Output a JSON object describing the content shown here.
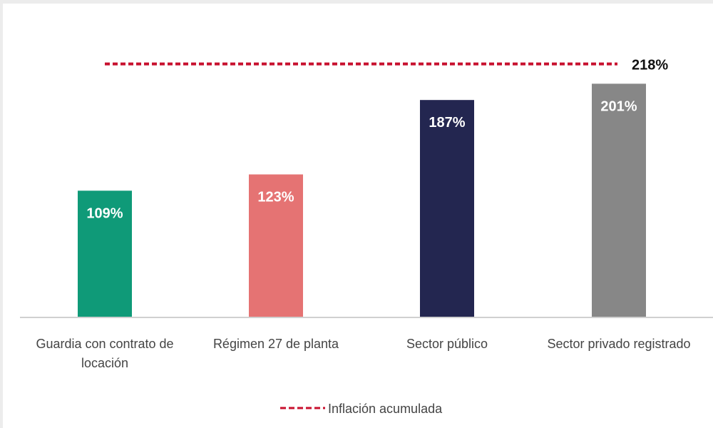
{
  "chart_data": {
    "type": "bar",
    "title": "",
    "xlabel": "",
    "ylabel": "",
    "ylim": [
      0,
      230
    ],
    "grid": false,
    "categories": [
      [
        "Guardia con contrato de",
        "locación"
      ],
      [
        "Régimen 27 de planta"
      ],
      [
        "Sector público"
      ],
      [
        "Sector privado registrado"
      ]
    ],
    "values": [
      109,
      123,
      187,
      201
    ],
    "data_labels": [
      "109%",
      "123%",
      "187%",
      "201%"
    ],
    "colors": [
      "#0f9a78",
      "#e57373",
      "#232650",
      "#878787"
    ],
    "reference_line": {
      "name": "Inflación acumulada",
      "value": 218,
      "label": "218%",
      "color": "#c8102e",
      "style": "dashed"
    },
    "legend": {
      "position": "bottom",
      "entries": [
        "Inflación acumulada"
      ]
    }
  }
}
